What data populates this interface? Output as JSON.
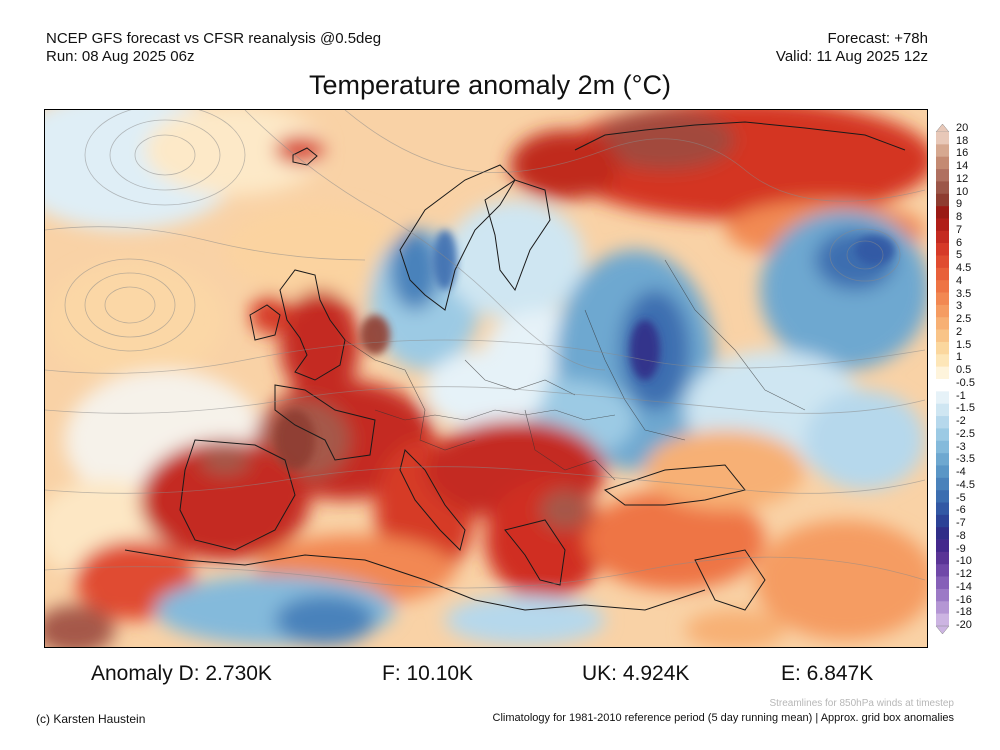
{
  "header": {
    "line1": "NCEP GFS forecast vs CFSR reanalysis @0.5deg",
    "line2": "Run: 08 Aug 2025 06z",
    "forecast": "Forecast: +78h",
    "valid": "Valid: 11 Aug 2025 12z"
  },
  "title": "Temperature anomaly 2m (°C)",
  "colorbar": {
    "labels": [
      "20",
      "18",
      "16",
      "14",
      "12",
      "10",
      "9",
      "8",
      "7",
      "6",
      "5",
      "4.5",
      "4",
      "3.5",
      "3",
      "2.5",
      "2",
      "1.5",
      "1",
      "0.5",
      "-0.5",
      "-1",
      "-1.5",
      "-2",
      "-2.5",
      "-3",
      "-3.5",
      "-4",
      "-4.5",
      "-5",
      "-6",
      "-7",
      "-8",
      "-9",
      "-10",
      "-12",
      "-14",
      "-16",
      "-18",
      "-20"
    ],
    "colors": [
      "#e8c8b8",
      "#d6a890",
      "#c48a72",
      "#b07060",
      "#9c5648",
      "#8e3c30",
      "#9a1a14",
      "#b01e18",
      "#c42a20",
      "#d63a28",
      "#e04c30",
      "#e8603a",
      "#ee7444",
      "#f28852",
      "#f59c62",
      "#f7b074",
      "#f9c488",
      "#fbd79e",
      "#fde6b8",
      "#fef4dc",
      "#ffffff",
      "#e6f2f8",
      "#cfe6f2",
      "#b6d8ec",
      "#9ccae4",
      "#84badb",
      "#6ea8d0",
      "#5a96c6",
      "#4a82bb",
      "#3c6eb0",
      "#3258a4",
      "#2c4296",
      "#302e88",
      "#44288c",
      "#5a3496",
      "#7048a8",
      "#8660b8",
      "#9c7ac6",
      "#b496d4",
      "#ccb4e2"
    ]
  },
  "stats": {
    "d": "Anomaly D: 2.730K",
    "f": "F: 10.10K",
    "uk": "UK: 4.924K",
    "e": "E: 6.847K"
  },
  "footer": {
    "streamlines_note": "Streamlines for 850hPa winds at timestep",
    "copyright": "(c) Karsten Haustein",
    "climatology": "Climatology for 1981-2010 reference period (5 day running mean) | Approx. grid box anomalies"
  }
}
